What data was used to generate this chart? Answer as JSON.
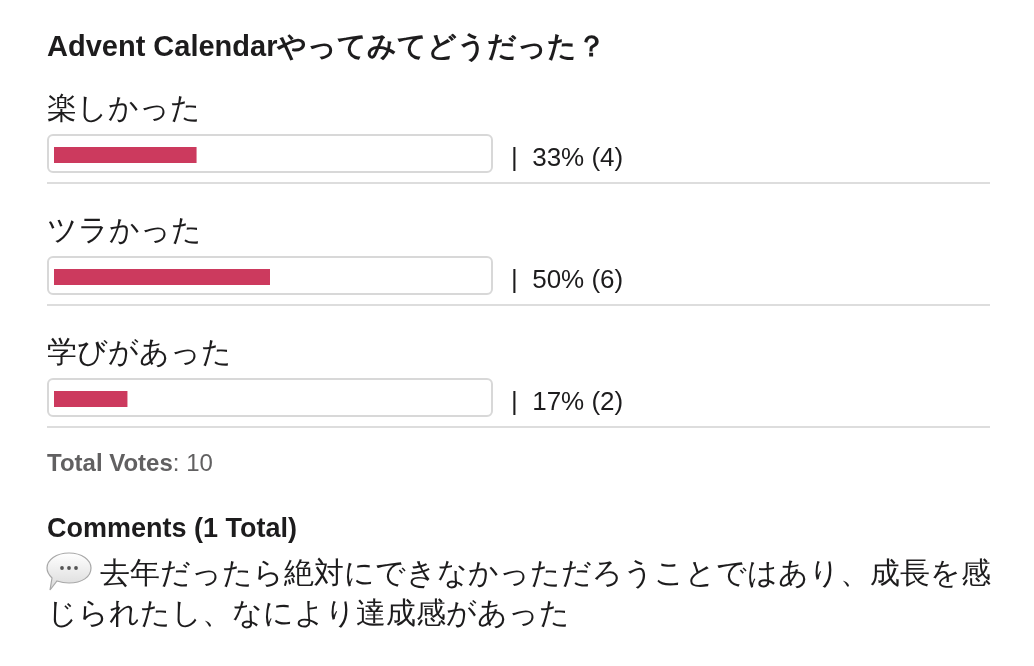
{
  "chart_data": {
    "type": "bar",
    "orientation": "horizontal",
    "title": "Advent Calendarやってみてどうだった？",
    "categories": [
      "楽しかった",
      "ツラかった",
      "学びがあった"
    ],
    "values": [
      33,
      50,
      17
    ],
    "color": "#cc3a5e",
    "value_labels": [
      "|  33% (4)",
      "|  50% (6)",
      "|  17% (2)"
    ],
    "annotations": [
      "Total Votes: 10",
      "Comments (1 Total)",
      "去年だったら絶対にできなかっただろうことではあり、成長を感じられたし、なにより達成感があった"
    ]
  }
}
